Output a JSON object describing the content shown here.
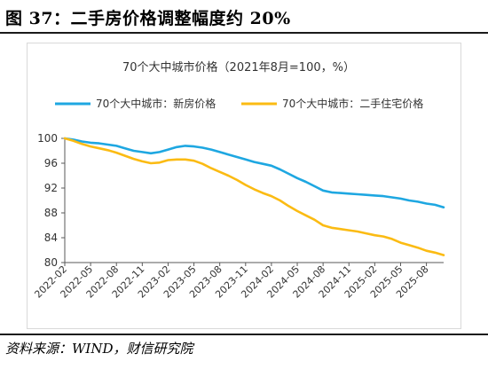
{
  "figure": {
    "title": "图 37：二手房价格调整幅度约 20%",
    "source": "资料来源：WIND，财信研究院"
  },
  "chart_data": {
    "type": "line",
    "title": "70个大中城市价格（2021年8月=100，%）",
    "xlabel": "",
    "ylabel": "",
    "ylim": [
      80,
      100
    ],
    "yticks": [
      80,
      84,
      88,
      92,
      96,
      100
    ],
    "x_tick_labels": [
      "2022-02",
      "2022-05",
      "2022-08",
      "2022-11",
      "2023-02",
      "2023-05",
      "2023-08",
      "2023-11",
      "2024-02",
      "2024-05",
      "2024-08",
      "2024-11",
      "2025-02",
      "2025-05",
      "2025-08"
    ],
    "legend": "top",
    "grid": false,
    "x": [
      "2022-02",
      "2022-03",
      "2022-04",
      "2022-05",
      "2022-06",
      "2022-07",
      "2022-08",
      "2022-09",
      "2022-10",
      "2022-11",
      "2022-12",
      "2023-01",
      "2023-02",
      "2023-03",
      "2023-04",
      "2023-05",
      "2023-06",
      "2023-07",
      "2023-08",
      "2023-09",
      "2023-10",
      "2023-11",
      "2023-12",
      "2024-01",
      "2024-02",
      "2024-03",
      "2024-04",
      "2024-05",
      "2024-06",
      "2024-07",
      "2024-08",
      "2024-09",
      "2024-10",
      "2024-11",
      "2024-12",
      "2025-01",
      "2025-02",
      "2025-03",
      "2025-04",
      "2025-05",
      "2025-06",
      "2025-07",
      "2025-08",
      "2025-09",
      "2025-10"
    ],
    "series": [
      {
        "name": "70个大中城市：新房价格",
        "color": "#1ea7e1",
        "values": [
          100.0,
          99.8,
          99.5,
          99.3,
          99.2,
          99.0,
          98.8,
          98.4,
          98.0,
          97.8,
          97.6,
          97.8,
          98.2,
          98.6,
          98.8,
          98.7,
          98.5,
          98.2,
          97.8,
          97.4,
          97.0,
          96.6,
          96.2,
          95.9,
          95.6,
          95.0,
          94.3,
          93.6,
          93.0,
          92.3,
          91.6,
          91.3,
          91.2,
          91.1,
          91.0,
          90.9,
          90.8,
          90.7,
          90.5,
          90.3,
          90.0,
          89.8,
          89.5,
          89.3,
          88.9
        ]
      },
      {
        "name": "70个大中城市：二手住宅价格",
        "color": "#fbbb13",
        "values": [
          100.0,
          99.6,
          99.1,
          98.7,
          98.4,
          98.1,
          97.7,
          97.2,
          96.7,
          96.3,
          96.0,
          96.1,
          96.5,
          96.6,
          96.6,
          96.4,
          95.9,
          95.2,
          94.6,
          94.0,
          93.3,
          92.5,
          91.8,
          91.2,
          90.7,
          90.0,
          89.1,
          88.3,
          87.6,
          86.9,
          86.0,
          85.6,
          85.4,
          85.2,
          85.0,
          84.7,
          84.4,
          84.2,
          83.8,
          83.2,
          82.8,
          82.4,
          81.9,
          81.6,
          81.2
        ]
      }
    ]
  }
}
